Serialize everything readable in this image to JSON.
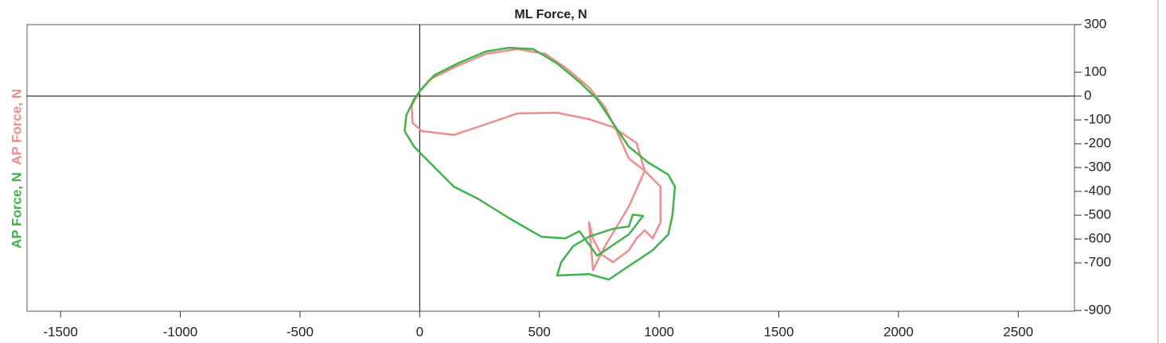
{
  "chart_data": {
    "type": "line",
    "title": "ML Force, N",
    "series": [
      {
        "name": "AP Force, N",
        "color": "#3cb54a",
        "x": [
          0,
          60,
          159,
          276,
          375,
          475,
          574,
          674,
          741,
          807,
          874,
          956,
          1039,
          1066,
          1056,
          1039,
          973,
          874,
          790,
          707,
          574,
          591,
          641,
          707,
          807,
          874,
          890,
          933,
          874,
          741,
          667,
          608,
          508,
          375,
          242,
          143,
          60,
          -23,
          -63,
          -56,
          -23,
          0
        ],
        "values": [
          20,
          87,
          137,
          187,
          203,
          197,
          137,
          53,
          -13,
          -113,
          -213,
          -280,
          -330,
          -380,
          -497,
          -580,
          -647,
          -713,
          -770,
          -747,
          -753,
          -697,
          -630,
          -590,
          -557,
          -547,
          -497,
          -503,
          -580,
          -670,
          -567,
          -597,
          -590,
          -513,
          -430,
          -380,
          -297,
          -213,
          -147,
          -80,
          -13,
          20
        ]
      },
      {
        "name": "AP Force, N",
        "color": "#f08c8c",
        "x": [
          43,
          143,
          276,
          408,
          525,
          608,
          707,
          774,
          823,
          874,
          940,
          1006,
          1006,
          973,
          940,
          906,
          874,
          807,
          757,
          724,
          707,
          724,
          774,
          874,
          940,
          906,
          807,
          707,
          574,
          408,
          242,
          143,
          10,
          -30,
          -33,
          0,
          43
        ],
        "values": [
          70,
          120,
          177,
          197,
          177,
          120,
          37,
          -47,
          -147,
          -263,
          -313,
          -380,
          -530,
          -597,
          -563,
          -597,
          -647,
          -697,
          -663,
          -597,
          -530,
          -730,
          -630,
          -463,
          -313,
          -197,
          -130,
          -97,
          -70,
          -73,
          -130,
          -163,
          -147,
          -113,
          -40,
          20,
          70
        ]
      }
    ],
    "xlim": [
      -1640,
      2735
    ],
    "xticks": [
      -1500,
      -1000,
      -500,
      0,
      500,
      1000,
      1500,
      2000,
      2500
    ],
    "ylim": [
      -903,
      300
    ],
    "yticks": [
      300,
      100,
      0,
      -100,
      -200,
      -300,
      -400,
      -500,
      -600,
      -700,
      -900
    ]
  }
}
